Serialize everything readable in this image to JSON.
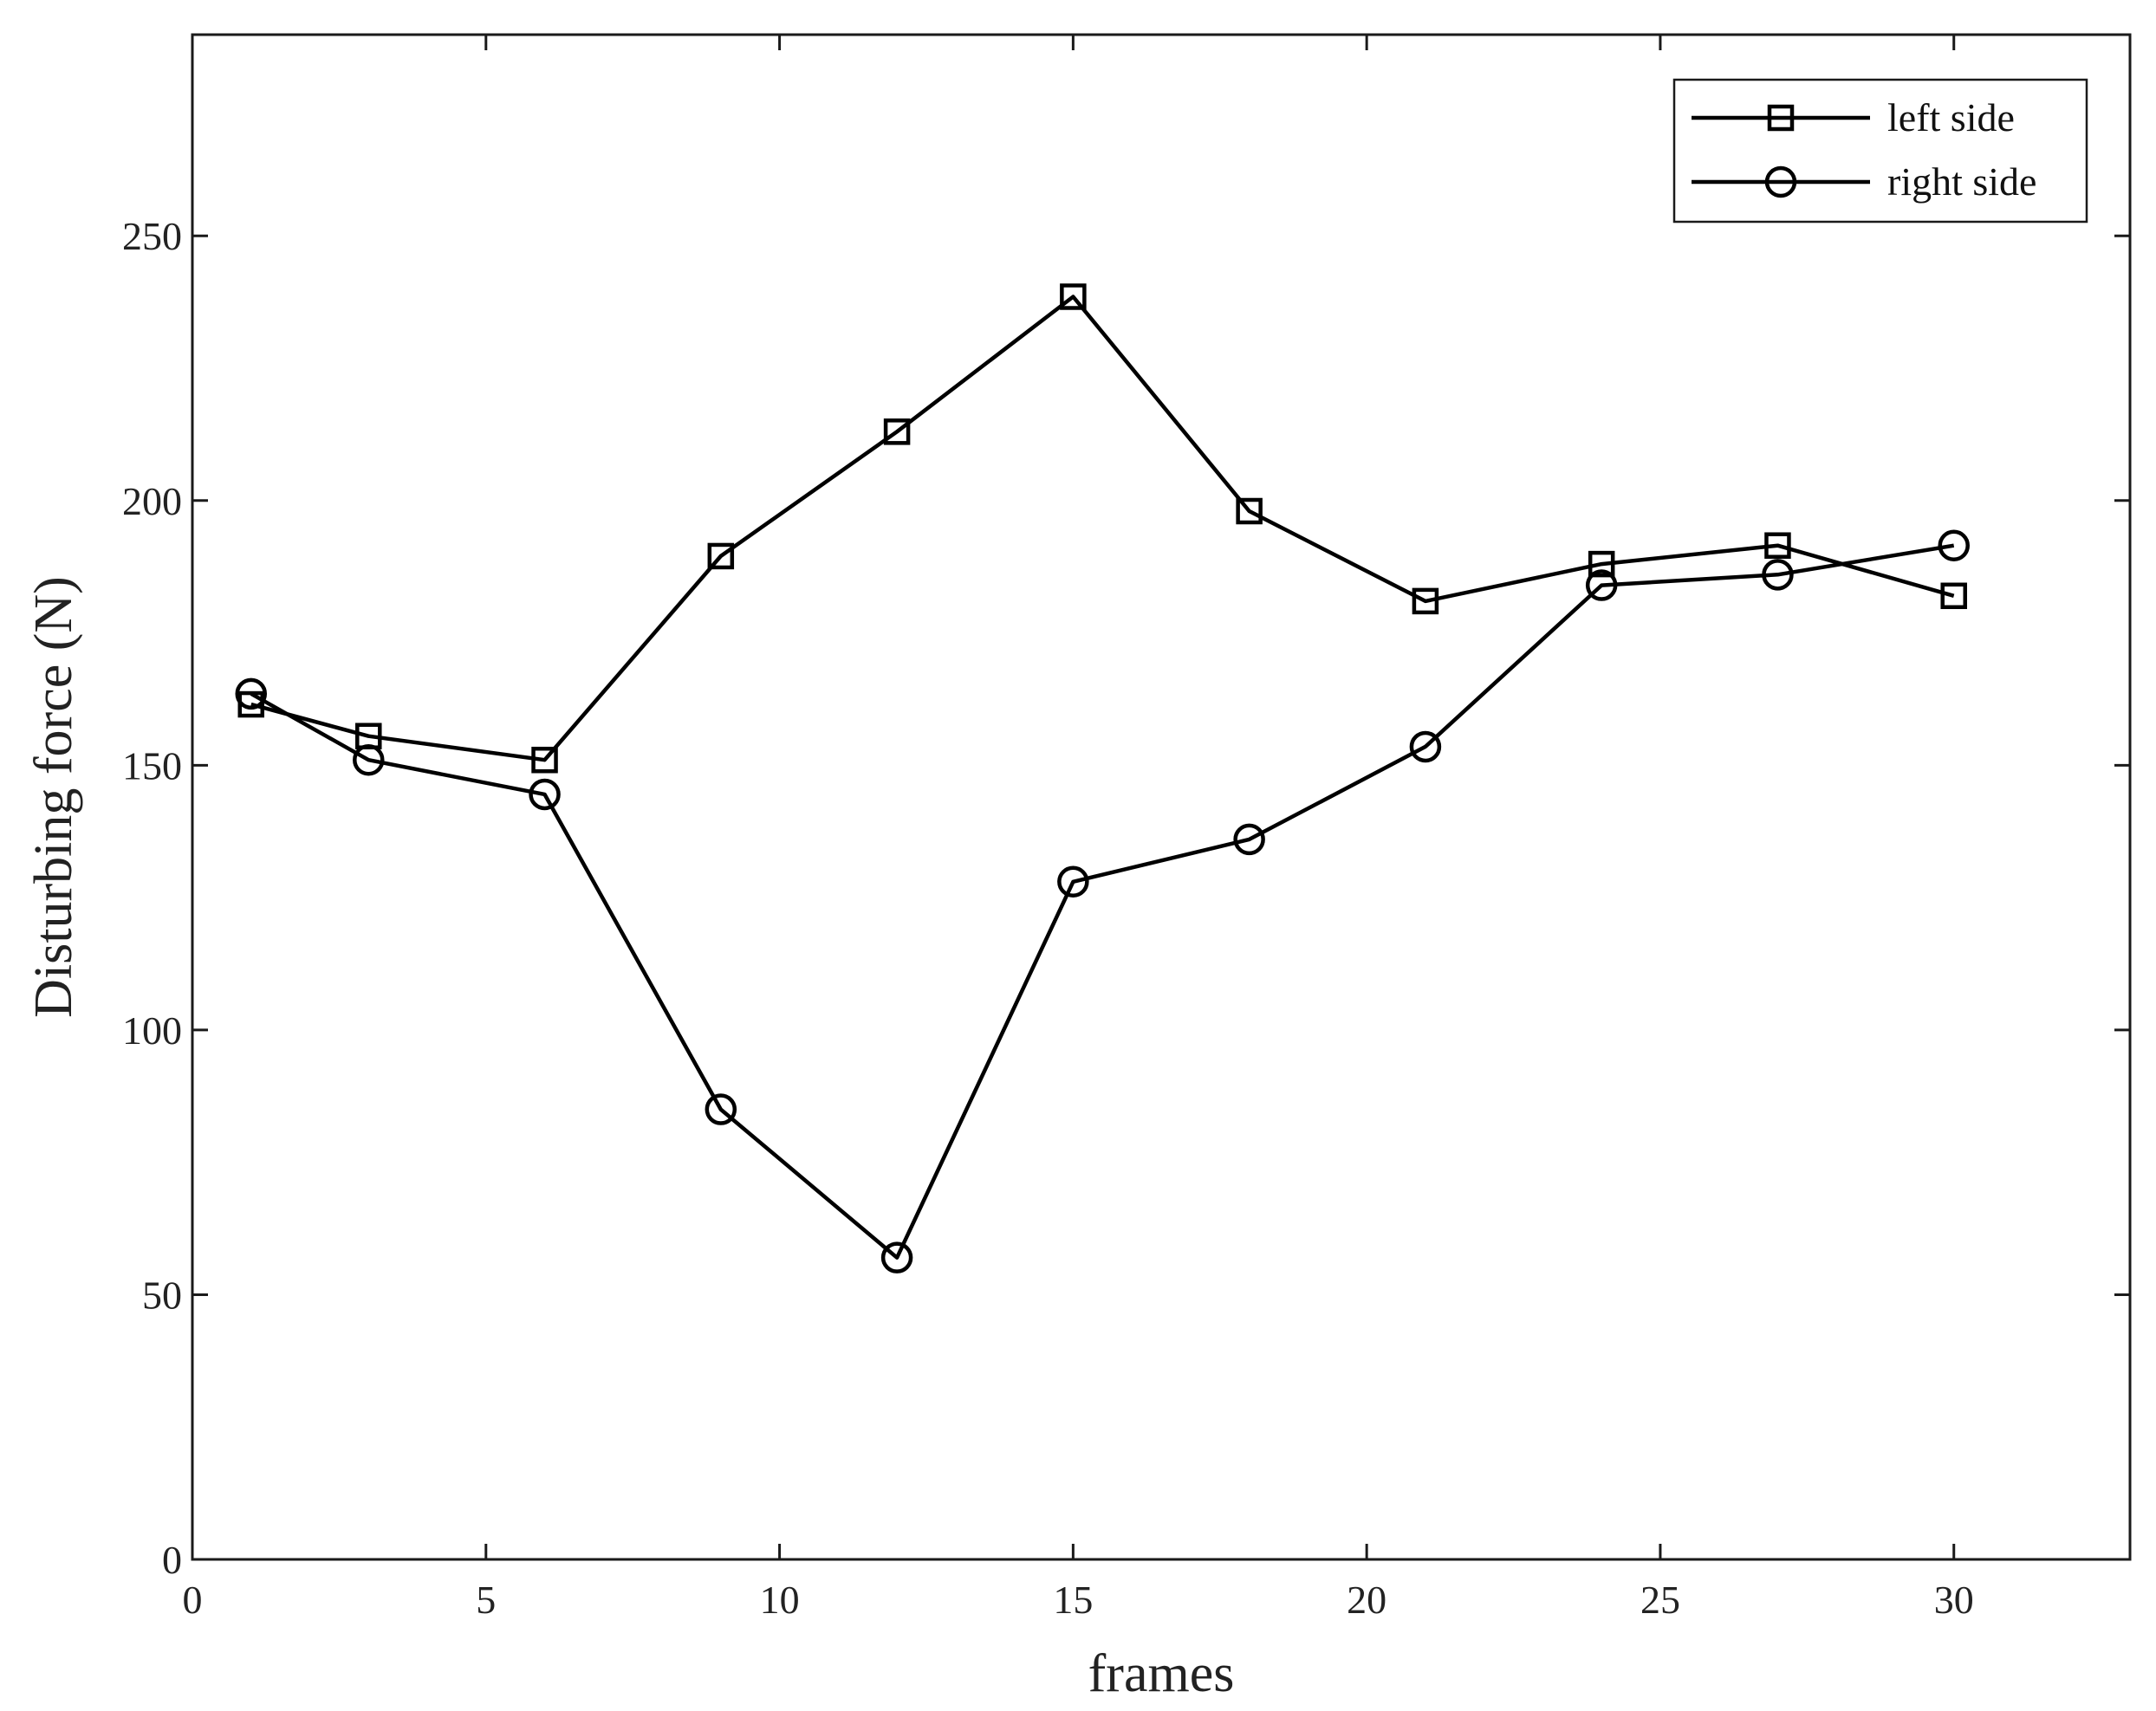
{
  "chart_data": {
    "type": "line",
    "title": "",
    "xlabel": "frames",
    "ylabel": "Disturbing force (N)",
    "xlim": [
      0,
      33
    ],
    "ylim": [
      0,
      288
    ],
    "xticks": [
      0,
      5,
      10,
      15,
      20,
      25,
      30
    ],
    "yticks": [
      0,
      50,
      100,
      150,
      200,
      250
    ],
    "grid": false,
    "legend_position": "top-right",
    "x": [
      1,
      3,
      6,
      9,
      12,
      15,
      18,
      21,
      24,
      27,
      30
    ],
    "series": [
      {
        "name": "left side",
        "marker": "square",
        "color": "#000000",
        "values": [
          161.5,
          155.5,
          151,
          189.5,
          213,
          238.5,
          198,
          181,
          188,
          191.5,
          182
        ]
      },
      {
        "name": "right side",
        "marker": "circle",
        "color": "#000000",
        "values": [
          163.5,
          151,
          144.5,
          85,
          57,
          128,
          136,
          153.5,
          184,
          186,
          191.5
        ]
      }
    ]
  }
}
